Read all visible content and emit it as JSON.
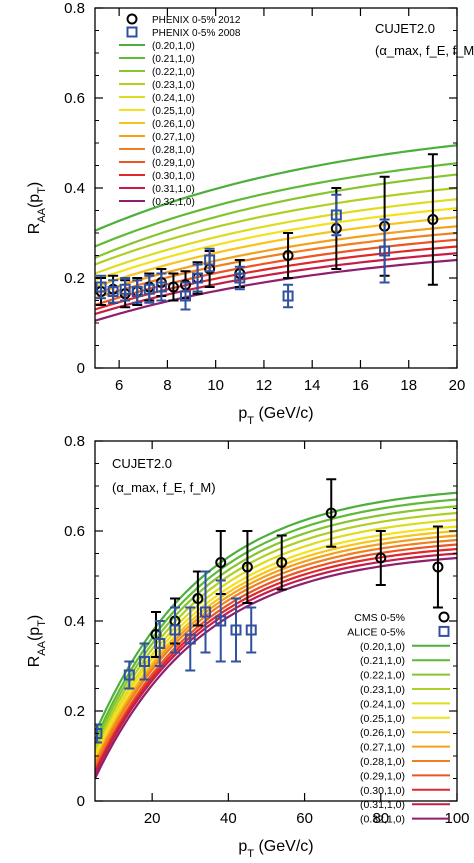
{
  "chart_data": [
    {
      "type": "line",
      "xlim": [
        5,
        20
      ],
      "ylim": [
        0,
        0.8
      ],
      "xticks": [
        "6",
        "8",
        "10",
        "12",
        "14",
        "16",
        "18",
        "20"
      ],
      "yticks": [
        "0",
        "0.2",
        "0.4",
        "0.6",
        "0.8"
      ],
      "xlabel": "p_T (GeV/c)",
      "ylabel": "R_AA(p_T)",
      "annotation": [
        "CUJET2.0",
        "(α_max, f_E, f_M)"
      ],
      "legend_position": "top-left",
      "data_series": [
        {
          "name": "PHENIX 0-5% 2012",
          "marker": "circle",
          "color": "#000000",
          "points": [
            {
              "x": 5.25,
              "y": 0.17,
              "err": 0.03
            },
            {
              "x": 5.75,
              "y": 0.175,
              "err": 0.03
            },
            {
              "x": 6.25,
              "y": 0.165,
              "err": 0.03
            },
            {
              "x": 6.75,
              "y": 0.17,
              "err": 0.03
            },
            {
              "x": 7.25,
              "y": 0.18,
              "err": 0.03
            },
            {
              "x": 7.75,
              "y": 0.19,
              "err": 0.03
            },
            {
              "x": 8.25,
              "y": 0.18,
              "err": 0.03
            },
            {
              "x": 8.75,
              "y": 0.185,
              "err": 0.03
            },
            {
              "x": 9.25,
              "y": 0.2,
              "err": 0.035
            },
            {
              "x": 9.75,
              "y": 0.22,
              "err": 0.04
            },
            {
              "x": 11,
              "y": 0.21,
              "err": 0.03
            },
            {
              "x": 13,
              "y": 0.25,
              "err": 0.05
            },
            {
              "x": 15,
              "y": 0.31,
              "err": 0.09
            },
            {
              "x": 17,
              "y": 0.315,
              "err": 0.11
            },
            {
              "x": 19,
              "y": 0.33,
              "err": 0.145
            }
          ]
        },
        {
          "name": "PHENIX 0-5% 2008",
          "marker": "square",
          "color": "#3050a0",
          "points": [
            {
              "x": 5.25,
              "y": 0.18,
              "err": 0.025
            },
            {
              "x": 5.75,
              "y": 0.17,
              "err": 0.025
            },
            {
              "x": 6.25,
              "y": 0.175,
              "err": 0.025
            },
            {
              "x": 6.75,
              "y": 0.17,
              "err": 0.025
            },
            {
              "x": 7.25,
              "y": 0.175,
              "err": 0.03
            },
            {
              "x": 7.75,
              "y": 0.18,
              "err": 0.03
            },
            {
              "x": 8.75,
              "y": 0.16,
              "err": 0.03
            },
            {
              "x": 9.25,
              "y": 0.2,
              "err": 0.03
            },
            {
              "x": 9.75,
              "y": 0.24,
              "err": 0.025
            },
            {
              "x": 11,
              "y": 0.2,
              "err": 0.025
            },
            {
              "x": 13,
              "y": 0.16,
              "err": 0.025
            },
            {
              "x": 15,
              "y": 0.34,
              "err": 0.045
            },
            {
              "x": 17,
              "y": 0.26,
              "err": 0.07
            }
          ]
        }
      ],
      "model_series": [
        {
          "name": "(0.20,1,0)",
          "color": "#4caf3c",
          "y_at_xmin": 0.305,
          "y_at_xmax": 0.495
        },
        {
          "name": "(0.21,1,0)",
          "color": "#5fba36",
          "y_at_xmin": 0.27,
          "y_at_xmax": 0.455
        },
        {
          "name": "(0.22,1,0)",
          "color": "#86c52f",
          "y_at_xmin": 0.245,
          "y_at_xmax": 0.43
        },
        {
          "name": "(0.23,1,0)",
          "color": "#b0cf26",
          "y_at_xmin": 0.23,
          "y_at_xmax": 0.4
        },
        {
          "name": "(0.24,1,0)",
          "color": "#dedc1c",
          "y_at_xmin": 0.21,
          "y_at_xmax": 0.375
        },
        {
          "name": "(0.25,1,0)",
          "color": "#f4e11a",
          "y_at_xmin": 0.195,
          "y_at_xmax": 0.355
        },
        {
          "name": "(0.26,1,0)",
          "color": "#f6c41a",
          "y_at_xmin": 0.18,
          "y_at_xmax": 0.335
        },
        {
          "name": "(0.27,1,0)",
          "color": "#f3a01c",
          "y_at_xmin": 0.165,
          "y_at_xmax": 0.315
        },
        {
          "name": "(0.28,1,0)",
          "color": "#f07f20",
          "y_at_xmin": 0.155,
          "y_at_xmax": 0.3
        },
        {
          "name": "(0.29,1,0)",
          "color": "#ea5524",
          "y_at_xmin": 0.14,
          "y_at_xmax": 0.285
        },
        {
          "name": "(0.30,1,0)",
          "color": "#e0282c",
          "y_at_xmin": 0.13,
          "y_at_xmax": 0.27
        },
        {
          "name": "(0.31,1,0)",
          "color": "#c21e48",
          "y_at_xmin": 0.12,
          "y_at_xmax": 0.255
        },
        {
          "name": "(0.32,1,0)",
          "color": "#8e1f6e",
          "y_at_xmin": 0.105,
          "y_at_xmax": 0.24
        }
      ]
    },
    {
      "type": "line",
      "xlim": [
        5,
        100
      ],
      "ylim": [
        0,
        0.8
      ],
      "xticks": [
        "20",
        "40",
        "60",
        "80",
        "100"
      ],
      "yticks": [
        "0",
        "0.2",
        "0.4",
        "0.6",
        "0.8"
      ],
      "xlabel": "p_T (GeV/c)",
      "ylabel": "R_AA(p_T)",
      "annotation": [
        "CUJET2.0",
        "(α_max, f_E, f_M)"
      ],
      "legend_position": "bottom-right",
      "data_series": [
        {
          "name": "CMS 0-5%",
          "marker": "circle",
          "color": "#000000",
          "points": [
            {
              "x": 21,
              "y": 0.37,
              "err": 0.05
            },
            {
              "x": 26,
              "y": 0.4,
              "err": 0.05
            },
            {
              "x": 32,
              "y": 0.45,
              "err": 0.06
            },
            {
              "x": 38,
              "y": 0.53,
              "err": 0.07
            },
            {
              "x": 45,
              "y": 0.52,
              "err": 0.08
            },
            {
              "x": 54,
              "y": 0.53,
              "err": 0.06
            },
            {
              "x": 67,
              "y": 0.64,
              "err": 0.075
            },
            {
              "x": 80,
              "y": 0.54,
              "err": 0.06
            },
            {
              "x": 95,
              "y": 0.52,
              "err": 0.09
            }
          ]
        },
        {
          "name": "ALICE 0-5%",
          "marker": "square",
          "color": "#3050a0",
          "points": [
            {
              "x": 5.5,
              "y": 0.15,
              "err": 0.02
            },
            {
              "x": 14,
              "y": 0.28,
              "err": 0.03
            },
            {
              "x": 18,
              "y": 0.31,
              "err": 0.04
            },
            {
              "x": 22,
              "y": 0.35,
              "err": 0.05
            },
            {
              "x": 26,
              "y": 0.38,
              "err": 0.05
            },
            {
              "x": 30,
              "y": 0.36,
              "err": 0.07
            },
            {
              "x": 34,
              "y": 0.42,
              "err": 0.09
            },
            {
              "x": 38,
              "y": 0.4,
              "err": 0.09
            },
            {
              "x": 42,
              "y": 0.38,
              "err": 0.07
            },
            {
              "x": 46,
              "y": 0.38,
              "err": 0.05
            }
          ]
        }
      ],
      "model_series": [
        {
          "name": "(0.20,1,0)",
          "color": "#4caf3c",
          "y_at_xmin": 0.15,
          "y_at_xmax": 0.685
        },
        {
          "name": "(0.21,1,0)",
          "color": "#5fba36",
          "y_at_xmin": 0.135,
          "y_at_xmax": 0.67
        },
        {
          "name": "(0.22,1,0)",
          "color": "#86c52f",
          "y_at_xmin": 0.125,
          "y_at_xmax": 0.655
        },
        {
          "name": "(0.23,1,0)",
          "color": "#b0cf26",
          "y_at_xmin": 0.115,
          "y_at_xmax": 0.64
        },
        {
          "name": "(0.24,1,0)",
          "color": "#dedc1c",
          "y_at_xmin": 0.105,
          "y_at_xmax": 0.625
        },
        {
          "name": "(0.25,1,0)",
          "color": "#f4e11a",
          "y_at_xmin": 0.1,
          "y_at_xmax": 0.61
        },
        {
          "name": "(0.26,1,0)",
          "color": "#f6c41a",
          "y_at_xmin": 0.09,
          "y_at_xmax": 0.6
        },
        {
          "name": "(0.27,1,0)",
          "color": "#f3a01c",
          "y_at_xmin": 0.085,
          "y_at_xmax": 0.59
        },
        {
          "name": "(0.28,1,0)",
          "color": "#f07f20",
          "y_at_xmin": 0.08,
          "y_at_xmax": 0.58
        },
        {
          "name": "(0.29,1,0)",
          "color": "#ea5524",
          "y_at_xmin": 0.07,
          "y_at_xmax": 0.57
        },
        {
          "name": "(0.30,1,0)",
          "color": "#e0282c",
          "y_at_xmin": 0.065,
          "y_at_xmax": 0.56
        },
        {
          "name": "(0.31,1,0)",
          "color": "#c21e48",
          "y_at_xmin": 0.06,
          "y_at_xmax": 0.55
        },
        {
          "name": "(0.32,1,0)",
          "color": "#8e1f6e",
          "y_at_xmin": 0.05,
          "y_at_xmax": 0.54
        }
      ]
    }
  ]
}
